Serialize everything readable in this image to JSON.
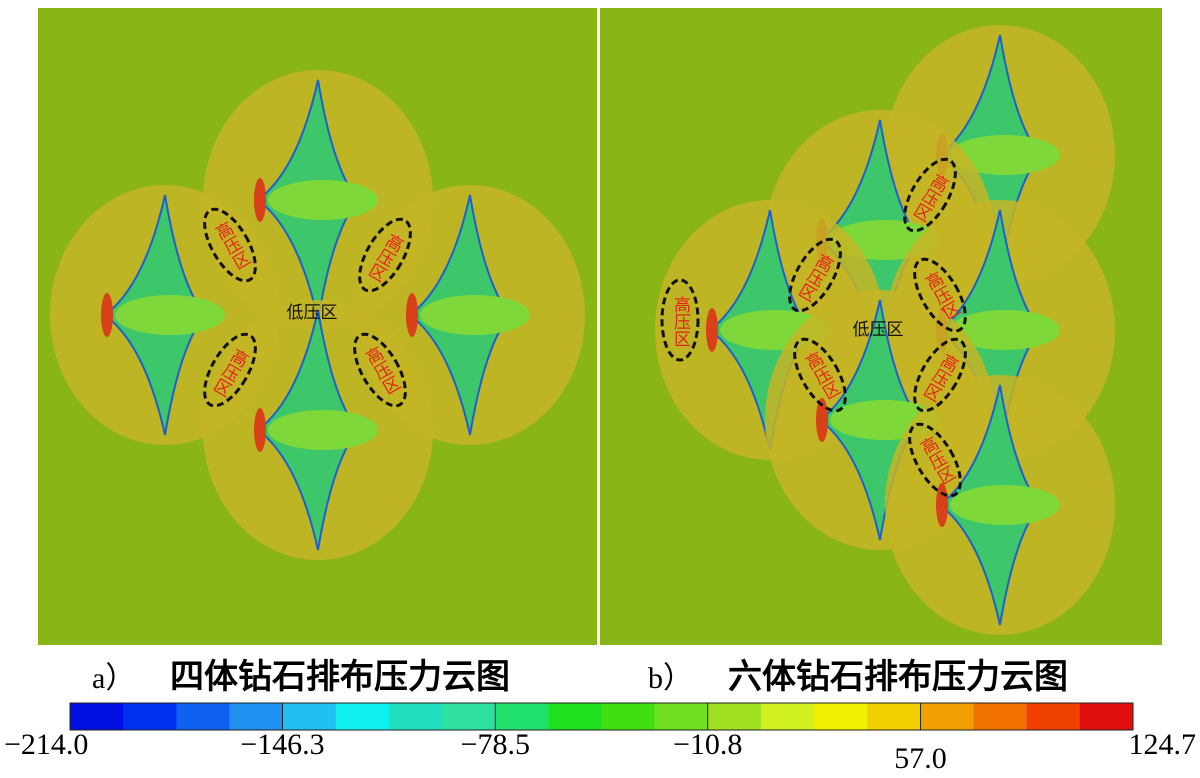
{
  "panels": [
    {
      "letter": "a）",
      "caption": "四体钻石排布压力云图",
      "high_labels": [
        "高压区",
        "高压区",
        "高压区",
        "高压区"
      ],
      "low_label": "低压区"
    },
    {
      "letter": "b）",
      "caption": "六体钻石排布压力云图",
      "high_labels": [
        "高压区",
        "高压区",
        "高压区",
        "高压区",
        "高压区",
        "高压区",
        "高压区"
      ],
      "low_label": "低压区"
    }
  ],
  "colorbar": {
    "lim": [
      -214.0,
      124.7
    ],
    "ticks": [
      {
        "value": -214.0,
        "label": "−214.0"
      },
      {
        "value": -146.3,
        "label": "−146.3"
      },
      {
        "value": -78.5,
        "label": "−78.5"
      },
      {
        "value": -10.8,
        "label": "−10.8"
      },
      {
        "value": 57.0,
        "label": "57.0"
      },
      124.7
    ],
    "colors": [
      "#0010e0",
      "#0030f0",
      "#1060f0",
      "#2090f0",
      "#20c0f0",
      "#10f0f0",
      "#20e0c0",
      "#30e0a0",
      "#20e070",
      "#20e020",
      "#40e010",
      "#70e020",
      "#a0e020",
      "#d0f020",
      "#f0f000",
      "#f0d000",
      "#f0a000",
      "#f07000",
      "#f04000",
      "#e01010"
    ]
  }
}
